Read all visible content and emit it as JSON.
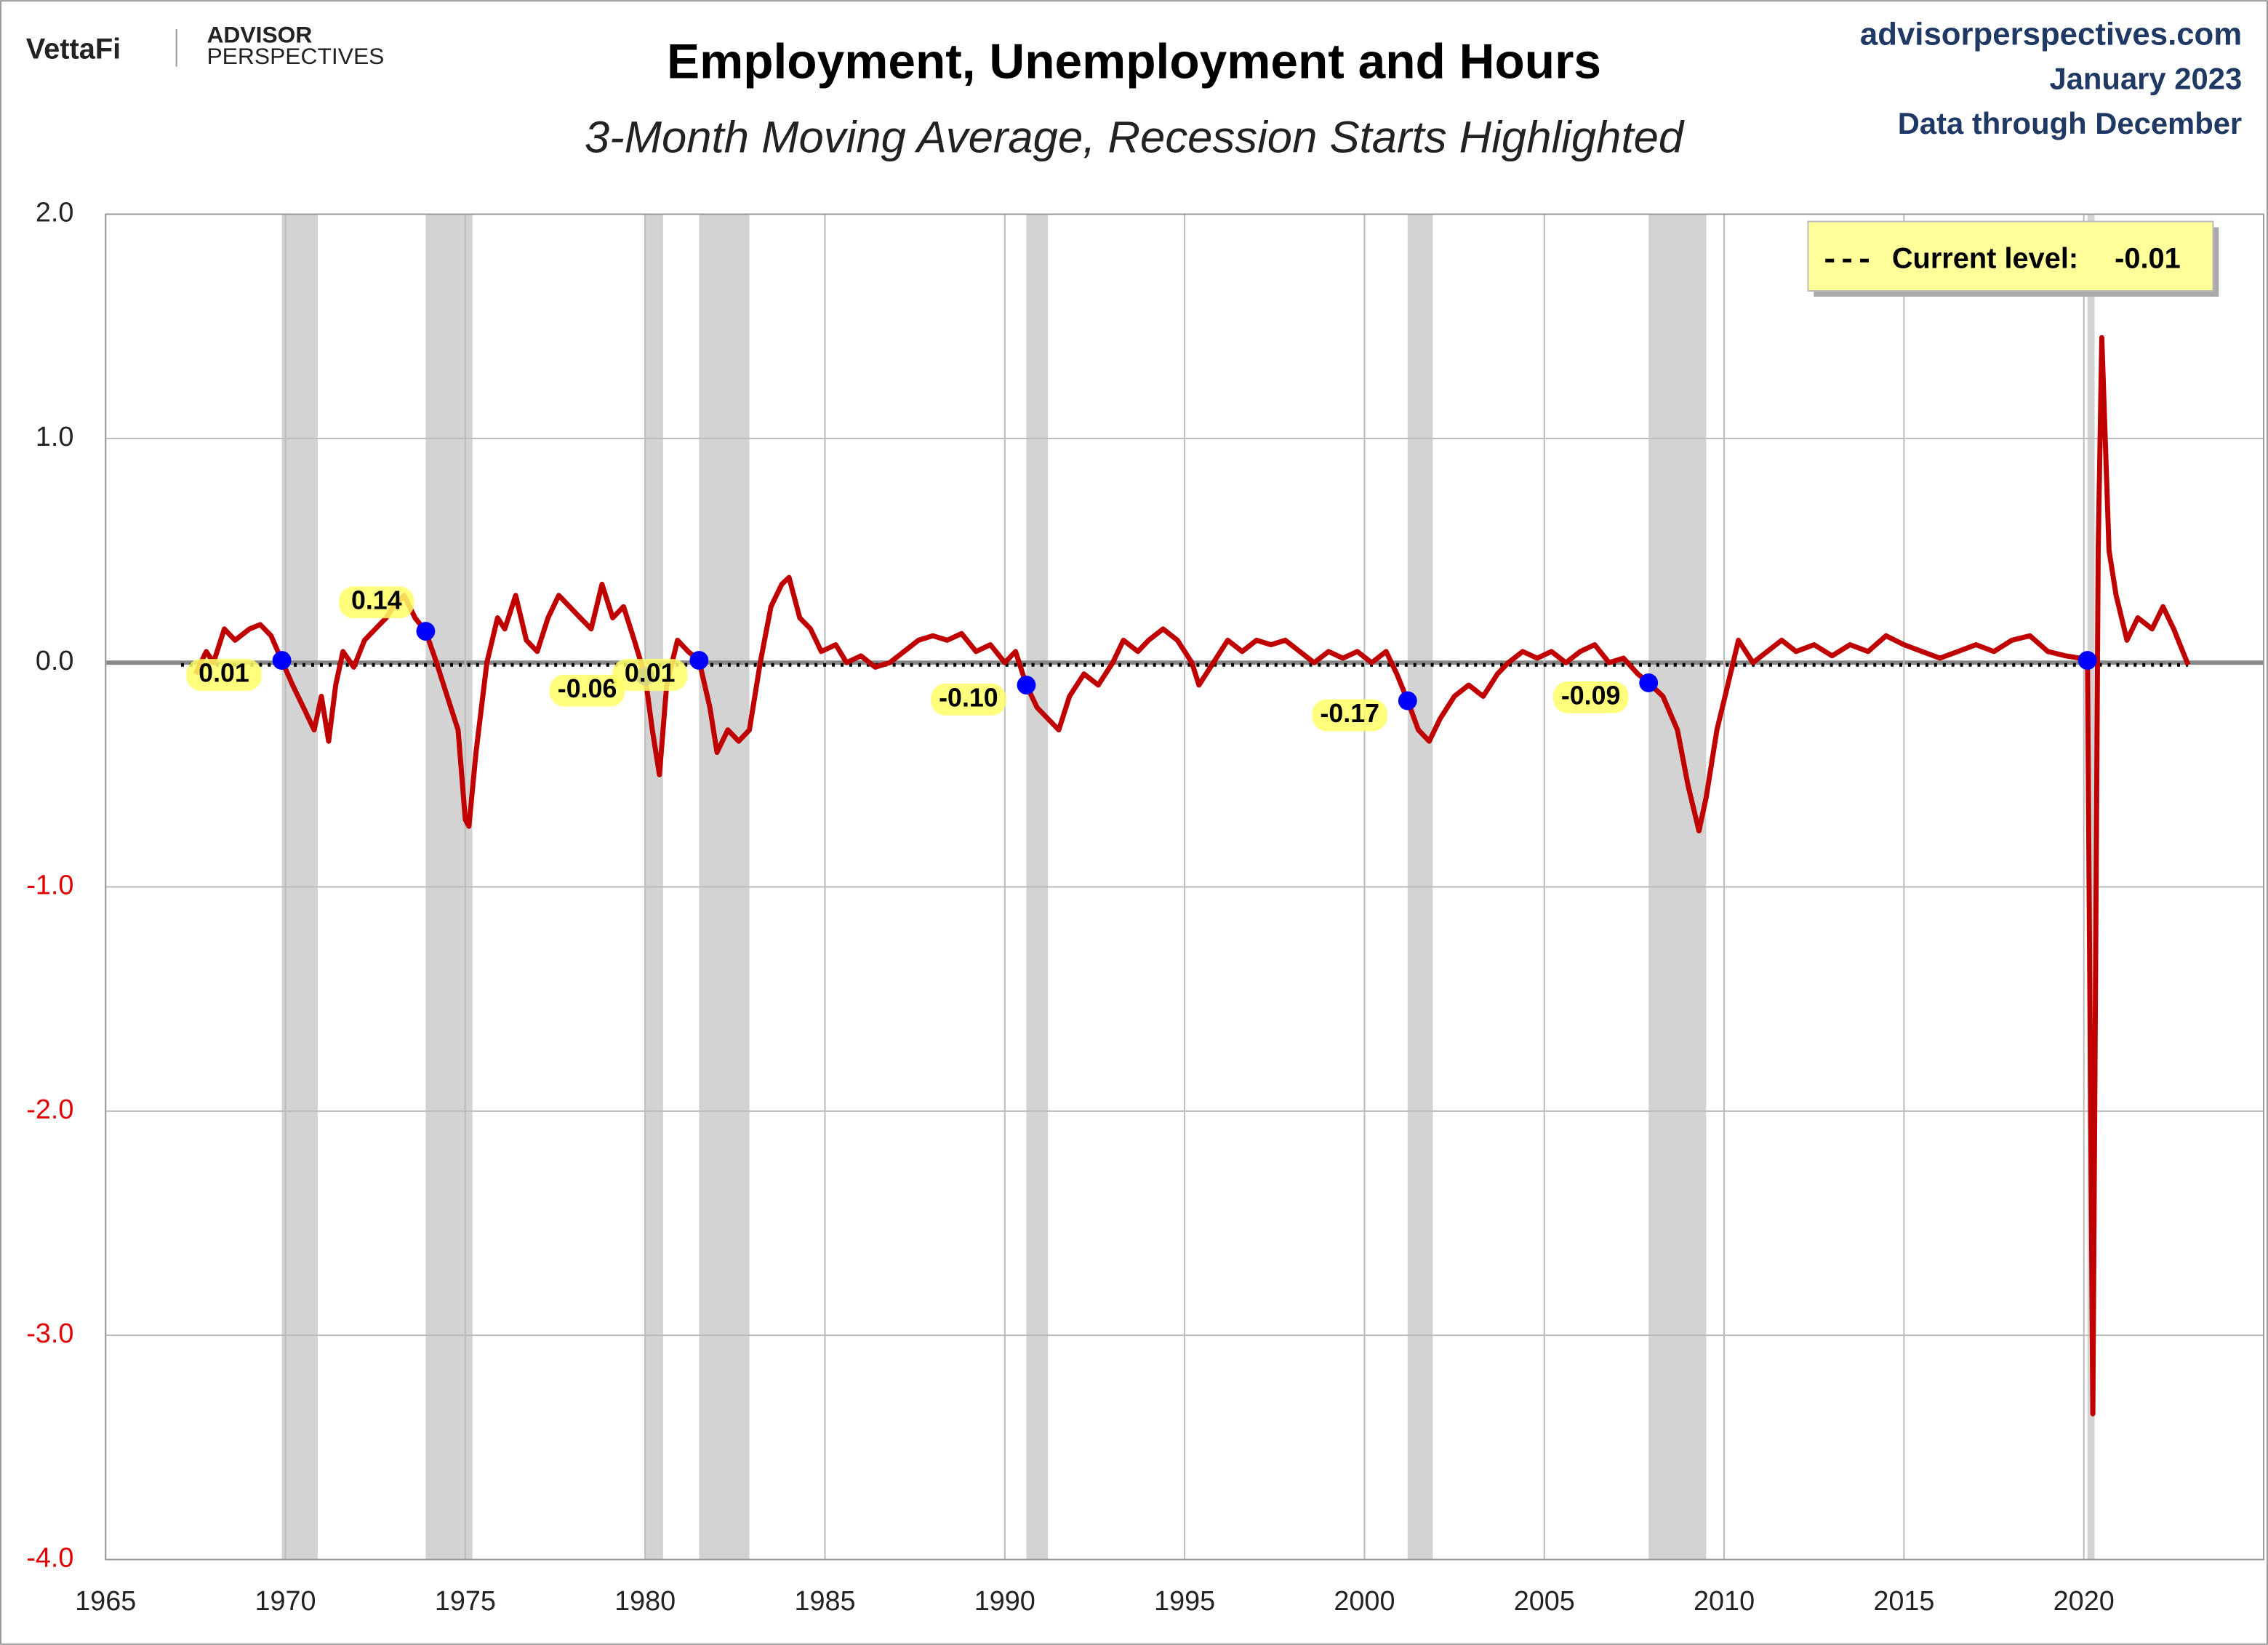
{
  "brand": {
    "name": "VettaFi",
    "publisher_line1": "ADVISOR",
    "publisher_line2": "PERSPECTIVES"
  },
  "source": {
    "site": "advisorperspectives.com",
    "date": "January 2023",
    "coverage": "Data through December"
  },
  "chart_data": {
    "type": "line",
    "title": "Employment, Unemployment and Hours",
    "subtitle": "3-Month Moving Average, Recession Starts Highlighted",
    "xlim": [
      1965,
      2025
    ],
    "xticks": [
      1965,
      1970,
      1975,
      1980,
      1985,
      1990,
      1995,
      2000,
      2005,
      2010,
      2015,
      2020
    ],
    "ylim": [
      -4,
      2
    ],
    "yticks": [
      {
        "value": 2,
        "label": "2.0"
      },
      {
        "value": 1,
        "label": "1.0"
      },
      {
        "value": 0,
        "label": "0.0"
      },
      {
        "value": -1,
        "label": "-1.0"
      },
      {
        "value": -2,
        "label": "-2.0"
      },
      {
        "value": -3,
        "label": "-3.0"
      },
      {
        "value": -4,
        "label": "-4.0"
      }
    ],
    "grid": true,
    "recessions": [
      [
        1969.9,
        1970.9
      ],
      [
        1973.9,
        1975.2
      ],
      [
        1980.0,
        1980.5
      ],
      [
        1981.5,
        1982.9
      ],
      [
        1990.6,
        1991.2
      ],
      [
        2001.2,
        2001.9
      ],
      [
        2007.9,
        2009.5
      ],
      [
        2020.1,
        2020.3
      ]
    ],
    "current_level": {
      "label": "Current level:",
      "value": -0.01
    },
    "series": [
      {
        "color": "#c00000",
        "x": [
          1967.5,
          1967.8,
          1968.0,
          1968.3,
          1968.6,
          1969.0,
          1969.3,
          1969.6,
          1969.9,
          1970.2,
          1970.5,
          1970.8,
          1971.0,
          1971.2,
          1971.4,
          1971.6,
          1971.9,
          1972.2,
          1972.5,
          1972.8,
          1973.0,
          1973.3,
          1973.6,
          1973.9,
          1974.2,
          1974.5,
          1974.8,
          1975.0,
          1975.1,
          1975.3,
          1975.6,
          1975.9,
          1976.1,
          1976.4,
          1976.7,
          1977.0,
          1977.3,
          1977.6,
          1977.9,
          1978.2,
          1978.5,
          1978.8,
          1979.1,
          1979.4,
          1979.7,
          1980.0,
          1980.2,
          1980.4,
          1980.6,
          1980.9,
          1981.2,
          1981.5,
          1981.8,
          1982.0,
          1982.3,
          1982.6,
          1982.9,
          1983.2,
          1983.5,
          1983.8,
          1984.0,
          1984.3,
          1984.6,
          1984.9,
          1985.3,
          1985.6,
          1986.0,
          1986.4,
          1986.8,
          1987.2,
          1987.6,
          1988.0,
          1988.4,
          1988.8,
          1989.2,
          1989.6,
          1990.0,
          1990.3,
          1990.6,
          1990.9,
          1991.2,
          1991.5,
          1991.8,
          1992.2,
          1992.6,
          1993.0,
          1993.3,
          1993.7,
          1994.0,
          1994.4,
          1994.8,
          1995.2,
          1995.4,
          1995.8,
          1996.2,
          1996.6,
          1997.0,
          1997.4,
          1997.8,
          1998.2,
          1998.6,
          1999.0,
          1999.4,
          1999.8,
          2000.2,
          2000.6,
          2000.9,
          2001.2,
          2001.5,
          2001.8,
          2002.1,
          2002.5,
          2002.9,
          2003.3,
          2003.7,
          2004.0,
          2004.4,
          2004.8,
          2005.2,
          2005.6,
          2006.0,
          2006.4,
          2006.8,
          2007.2,
          2007.6,
          2007.9,
          2008.3,
          2008.7,
          2009.0,
          2009.3,
          2009.5,
          2009.8,
          2010.1,
          2010.4,
          2010.8,
          2011.2,
          2011.6,
          2012.0,
          2012.5,
          2013.0,
          2013.5,
          2014.0,
          2014.5,
          2015.0,
          2015.5,
          2016.0,
          2016.5,
          2017.0,
          2017.5,
          2018.0,
          2018.5,
          2019.0,
          2019.5,
          2019.9,
          2020.1,
          2020.25,
          2020.4,
          2020.5,
          2020.7,
          2020.9,
          2021.2,
          2021.5,
          2021.9,
          2022.2,
          2022.5,
          2022.8,
          2022.9
        ],
        "values": [
          -0.05,
          0.05,
          0.0,
          0.15,
          0.1,
          0.15,
          0.17,
          0.12,
          0.01,
          -0.1,
          -0.2,
          -0.3,
          -0.15,
          -0.35,
          -0.1,
          0.05,
          -0.02,
          0.1,
          0.15,
          0.2,
          0.25,
          0.3,
          0.2,
          0.14,
          0.0,
          -0.15,
          -0.3,
          -0.7,
          -0.73,
          -0.4,
          0.0,
          0.2,
          0.15,
          0.3,
          0.1,
          0.05,
          0.2,
          0.3,
          0.25,
          0.2,
          0.15,
          0.35,
          0.2,
          0.25,
          0.1,
          -0.06,
          -0.3,
          -0.5,
          -0.1,
          0.1,
          0.05,
          0.01,
          -0.2,
          -0.4,
          -0.3,
          -0.35,
          -0.3,
          0.0,
          0.25,
          0.35,
          0.38,
          0.2,
          0.15,
          0.05,
          0.08,
          0.0,
          0.03,
          -0.02,
          0.0,
          0.05,
          0.1,
          0.12,
          0.1,
          0.13,
          0.05,
          0.08,
          0.0,
          0.05,
          -0.1,
          -0.2,
          -0.25,
          -0.3,
          -0.15,
          -0.05,
          -0.1,
          0.0,
          0.1,
          0.05,
          0.1,
          0.15,
          0.1,
          0.0,
          -0.1,
          0.0,
          0.1,
          0.05,
          0.1,
          0.08,
          0.1,
          0.05,
          0.0,
          0.05,
          0.02,
          0.05,
          0.0,
          0.05,
          -0.05,
          -0.17,
          -0.3,
          -0.35,
          -0.25,
          -0.15,
          -0.1,
          -0.15,
          -0.05,
          0.0,
          0.05,
          0.02,
          0.05,
          0.0,
          0.05,
          0.08,
          0.0,
          0.02,
          -0.05,
          -0.09,
          -0.15,
          -0.3,
          -0.55,
          -0.75,
          -0.6,
          -0.3,
          -0.1,
          0.1,
          0.0,
          0.05,
          0.1,
          0.05,
          0.08,
          0.03,
          0.08,
          0.05,
          0.12,
          0.08,
          0.05,
          0.02,
          0.05,
          0.08,
          0.05,
          0.1,
          0.12,
          0.05,
          0.03,
          0.02,
          0.01,
          -3.35,
          0.5,
          1.45,
          0.5,
          0.3,
          0.1,
          0.2,
          0.15,
          0.25,
          0.15,
          0.03,
          -0.01
        ]
      }
    ],
    "recession_starts": {
      "color": "#0000ff",
      "x": [
        1969.9,
        1973.9,
        1980.0,
        1981.5,
        1990.6,
        2001.2,
        2007.9,
        2020.1
      ],
      "values": [
        0.01,
        0.14,
        -0.06,
        0.01,
        -0.1,
        -0.17,
        -0.09,
        0.01
      ],
      "value_labels": [
        "0.01",
        "0.14",
        "-0.06",
        "0.01",
        "-0.10",
        "-0.17",
        "-0.09",
        null
      ]
    }
  }
}
